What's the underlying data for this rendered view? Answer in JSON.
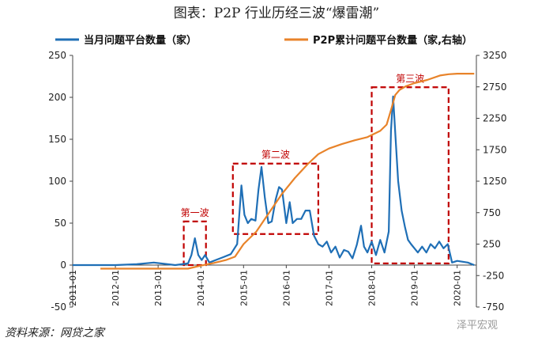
{
  "page": {
    "title": "图表：P2P 行业历经三波“爆雷潮”",
    "source": "资料来源：网贷之家",
    "watermark": "泽平宏观"
  },
  "chart_data": {
    "type": "line",
    "title": "图表：P2P 行业历经三波“爆雷潮”",
    "legend": {
      "position": "top",
      "entries": [
        {
          "name": "当月问题平台数量（家）",
          "color": "#1f6fb6"
        },
        {
          "name": "P2P累计问题平台数量（家,右轴）",
          "color": "#e8832a"
        }
      ]
    },
    "x_ticks": [
      "2011-01",
      "2012-01",
      "2013-01",
      "2014-01",
      "2015-01",
      "2016-01",
      "2017-01",
      "2018-01",
      "2019-01",
      "2020-01"
    ],
    "y_left": {
      "min": -50,
      "max": 250,
      "ticks": [
        -50,
        0,
        50,
        100,
        150,
        200,
        250
      ]
    },
    "y_right": {
      "min": -750,
      "max": 3250,
      "ticks": [
        -750,
        -250,
        250,
        750,
        1250,
        1750,
        2250,
        2750,
        3250
      ]
    },
    "series": [
      {
        "name": "当月问题平台数量（家）",
        "axis": "left",
        "color": "#1f6fb6",
        "points": [
          [
            2011.0,
            0
          ],
          [
            2012.0,
            0
          ],
          [
            2012.5,
            1
          ],
          [
            2012.9,
            3
          ],
          [
            2013.4,
            0
          ],
          [
            2013.7,
            2
          ],
          [
            2013.78,
            12
          ],
          [
            2013.86,
            32
          ],
          [
            2013.94,
            12
          ],
          [
            2014.02,
            6
          ],
          [
            2014.1,
            12
          ],
          [
            2014.2,
            3
          ],
          [
            2014.35,
            6
          ],
          [
            2014.5,
            9
          ],
          [
            2014.7,
            13
          ],
          [
            2014.85,
            25
          ],
          [
            2014.95,
            95
          ],
          [
            2015.02,
            60
          ],
          [
            2015.1,
            50
          ],
          [
            2015.18,
            55
          ],
          [
            2015.28,
            53
          ],
          [
            2015.35,
            90
          ],
          [
            2015.42,
            117
          ],
          [
            2015.5,
            80
          ],
          [
            2015.58,
            50
          ],
          [
            2015.66,
            52
          ],
          [
            2015.75,
            78
          ],
          [
            2015.83,
            93
          ],
          [
            2015.9,
            90
          ],
          [
            2016.0,
            50
          ],
          [
            2016.08,
            75
          ],
          [
            2016.15,
            50
          ],
          [
            2016.25,
            55
          ],
          [
            2016.35,
            55
          ],
          [
            2016.45,
            65
          ],
          [
            2016.55,
            65
          ],
          [
            2016.65,
            35
          ],
          [
            2016.75,
            25
          ],
          [
            2016.85,
            22
          ],
          [
            2016.95,
            28
          ],
          [
            2017.05,
            15
          ],
          [
            2017.15,
            22
          ],
          [
            2017.25,
            9
          ],
          [
            2017.35,
            18
          ],
          [
            2017.45,
            16
          ],
          [
            2017.55,
            8
          ],
          [
            2017.65,
            24
          ],
          [
            2017.75,
            47
          ],
          [
            2017.82,
            22
          ],
          [
            2017.9,
            15
          ],
          [
            2018.0,
            28
          ],
          [
            2018.1,
            12
          ],
          [
            2018.2,
            30
          ],
          [
            2018.3,
            15
          ],
          [
            2018.4,
            40
          ],
          [
            2018.45,
            160
          ],
          [
            2018.5,
            201
          ],
          [
            2018.56,
            150
          ],
          [
            2018.62,
            100
          ],
          [
            2018.7,
            65
          ],
          [
            2018.78,
            45
          ],
          [
            2018.85,
            30
          ],
          [
            2018.92,
            25
          ],
          [
            2019.0,
            20
          ],
          [
            2019.08,
            15
          ],
          [
            2019.18,
            22
          ],
          [
            2019.28,
            15
          ],
          [
            2019.38,
            25
          ],
          [
            2019.48,
            20
          ],
          [
            2019.58,
            28
          ],
          [
            2019.68,
            20
          ],
          [
            2019.78,
            25
          ],
          [
            2019.88,
            3
          ],
          [
            2020.0,
            5
          ],
          [
            2020.25,
            3
          ],
          [
            2020.4,
            0
          ]
        ]
      },
      {
        "name": "P2P累计问题平台数量（家,右轴）",
        "axis": "right",
        "color": "#e8832a",
        "points": [
          [
            2011.65,
            -140
          ],
          [
            2012.5,
            -140
          ],
          [
            2013.3,
            -140
          ],
          [
            2013.7,
            -140
          ],
          [
            2013.95,
            -100
          ],
          [
            2014.3,
            -50
          ],
          [
            2014.6,
            0
          ],
          [
            2014.8,
            50
          ],
          [
            2015.0,
            250
          ],
          [
            2015.3,
            450
          ],
          [
            2015.6,
            750
          ],
          [
            2015.9,
            1050
          ],
          [
            2016.2,
            1300
          ],
          [
            2016.5,
            1520
          ],
          [
            2016.75,
            1680
          ],
          [
            2017.0,
            1770
          ],
          [
            2017.3,
            1840
          ],
          [
            2017.6,
            1900
          ],
          [
            2017.9,
            1950
          ],
          [
            2018.2,
            2050
          ],
          [
            2018.35,
            2150
          ],
          [
            2018.45,
            2380
          ],
          [
            2018.55,
            2620
          ],
          [
            2018.65,
            2700
          ],
          [
            2018.8,
            2760
          ],
          [
            2019.0,
            2810
          ],
          [
            2019.3,
            2860
          ],
          [
            2019.6,
            2930
          ],
          [
            2019.8,
            2950
          ],
          [
            2020.0,
            2960
          ],
          [
            2020.4,
            2960
          ]
        ]
      }
    ],
    "annotations": [
      {
        "label": "第一波",
        "x0": 2013.6,
        "x1": 2014.12,
        "y0": 0,
        "y1": 52
      },
      {
        "label": "第二波",
        "x0": 2014.75,
        "x1": 2016.75,
        "y0": 37,
        "y1": 121
      },
      {
        "label": "第三波",
        "x0": 2018.0,
        "x1": 2019.8,
        "y0": 2,
        "y1": 212
      }
    ]
  }
}
